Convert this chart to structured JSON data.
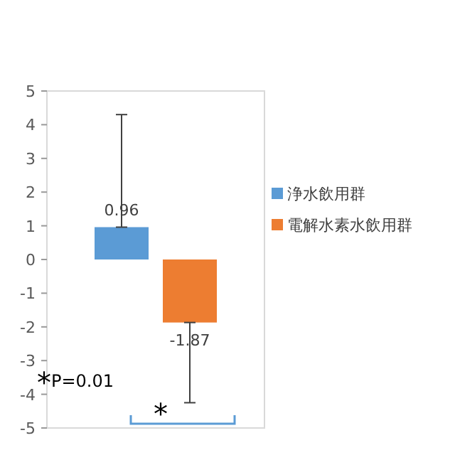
{
  "chart_data": {
    "type": "bar",
    "categories": [
      null
    ],
    "series": [
      {
        "name": "浄水飲用群",
        "color": "#5b9bd5",
        "values": [
          0.96
        ],
        "errors": [
          [
            0.96,
            4.3
          ]
        ]
      },
      {
        "name": "電解水素水飲用群",
        "color": "#ed7d31",
        "values": [
          -1.87
        ],
        "errors": [
          [
            -4.25,
            -1.87
          ]
        ]
      }
    ],
    "ylim": [
      -5,
      5
    ],
    "yticks": [
      -5,
      -4,
      -3,
      -2,
      -1,
      0,
      1,
      2,
      3,
      4,
      5
    ],
    "data_labels": true,
    "legend": "right",
    "annotations": [
      "*P=0.01",
      "*"
    ]
  }
}
